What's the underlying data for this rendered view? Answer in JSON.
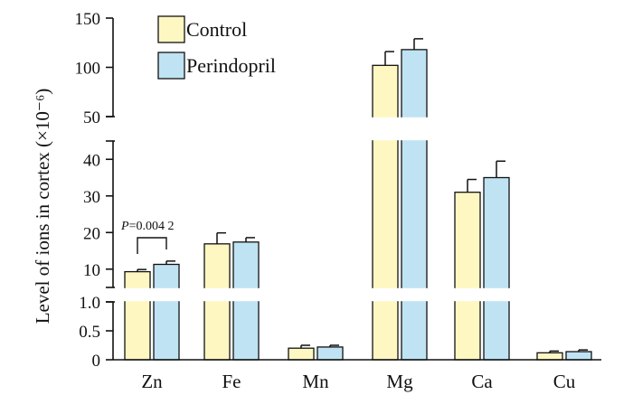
{
  "chart_data": {
    "type": "bar",
    "ylabel": "Level of ions in cortex (×10⁻⁶)",
    "categories": [
      "Zn",
      "Fe",
      "Mn",
      "Mg",
      "Ca",
      "Cu"
    ],
    "series": [
      {
        "name": "Control",
        "color": "#fff7c2",
        "values": [
          9.3,
          16.9,
          0.2,
          102,
          31,
          0.12
        ],
        "errors": [
          0.6,
          3.0,
          0.05,
          14,
          3.5,
          0.03
        ]
      },
      {
        "name": "Perindopril",
        "color": "#bfe3f3",
        "values": [
          11.3,
          17.4,
          0.22,
          118,
          35,
          0.14
        ],
        "errors": [
          0.9,
          1.2,
          0.03,
          11,
          4.5,
          0.03
        ]
      }
    ],
    "y_axis_segments": [
      {
        "ylim": [
          0,
          1.0
        ],
        "ticks": [
          "0",
          "0.5",
          "1.0"
        ]
      },
      {
        "ylim": [
          5,
          45
        ],
        "ticks": [
          "10",
          "20",
          "30",
          "40"
        ]
      },
      {
        "ylim": [
          50,
          150
        ],
        "ticks": [
          "50",
          "100",
          "150"
        ]
      }
    ],
    "annotation": {
      "category": "Zn",
      "italic": "P",
      "text": "=0.004 2"
    },
    "legend_position": "top-left",
    "grid": false
  }
}
